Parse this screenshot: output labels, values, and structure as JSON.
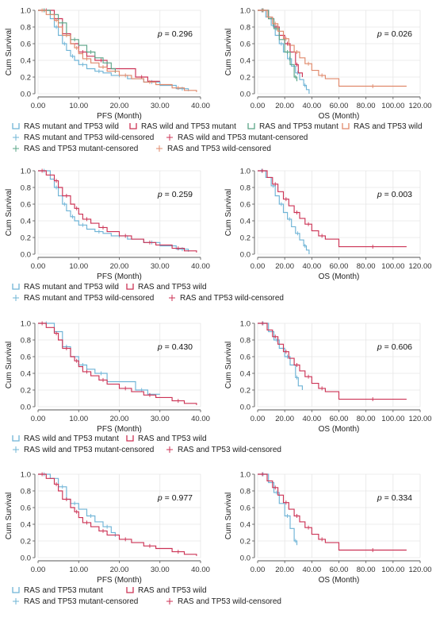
{
  "colors": {
    "rm_tw": "#6fb4d6",
    "rw_tm": "#cc3355",
    "r_tm": "#5aa487",
    "r_tw": "#e0886a",
    "axis": "#555555",
    "grid": "#e6e6e6"
  },
  "legends": [
    [
      {
        "kind": "step",
        "color": "rm_tw",
        "label": "RAS mutant and TP53 wild"
      },
      {
        "kind": "step",
        "color": "rw_tm",
        "label": "RAS wild and TP53 mutant"
      },
      {
        "kind": "step",
        "color": "r_tm",
        "label": "RAS and TP53 mutant"
      },
      {
        "kind": "step",
        "color": "r_tw",
        "label": "RAS and TP53 wild"
      },
      {
        "kind": "plus",
        "color": "rm_tw",
        "label": "RAS mutant and TP53 wild-censored"
      },
      {
        "kind": "plus",
        "color": "rw_tm",
        "label": "RAS wild and TP53 mutant-censored"
      },
      {
        "kind": "plus",
        "color": "r_tm",
        "label": "RAS and TP53 mutant-censored"
      },
      {
        "kind": "plus",
        "color": "r_tw",
        "label": "RAS and TP53 wild-censored"
      }
    ],
    [
      {
        "kind": "step",
        "color": "rm_tw",
        "label": "RAS mutant and TP53 wild"
      },
      {
        "kind": "step",
        "color": "rw_tm",
        "label": "RAS and TP53 wild"
      },
      {
        "kind": "plus",
        "color": "rm_tw",
        "label": "RAS mutant and TP53 wild-censored"
      },
      {
        "kind": "plus",
        "color": "rw_tm",
        "label": "RAS and TP53 wild-censored"
      }
    ],
    [
      {
        "kind": "step",
        "color": "rm_tw",
        "label": "RAS wild and TP53 mutant"
      },
      {
        "kind": "step",
        "color": "rw_tm",
        "label": "RAS and TP53 wild"
      },
      {
        "kind": "plus",
        "color": "rm_tw",
        "label": "RAS wild and TP53 mutant-censored"
      },
      {
        "kind": "plus",
        "color": "rw_tm",
        "label": "RAS and TP53 wild-censored"
      }
    ],
    [
      {
        "kind": "step",
        "color": "rm_tw",
        "label": "RAS and TP53 mutant"
      },
      {
        "kind": "step",
        "color": "rw_tm",
        "label": "RAS and TP53 wild"
      },
      {
        "kind": "plus",
        "color": "rm_tw",
        "label": "RAS and TP53 mutant-censored"
      },
      {
        "kind": "plus",
        "color": "rw_tm",
        "label": "RAS and TP53 wild-censored"
      }
    ]
  ],
  "chart_data": [
    {
      "type": "line",
      "row": 0,
      "col": 0,
      "step": true,
      "ylabel": "Cum Survival",
      "xlabel": "PFS (Month)",
      "p_label": "p",
      "p_text": "= 0.296",
      "xlim": [
        0,
        40
      ],
      "ylim": [
        0,
        1
      ],
      "xticks": [
        "0.00",
        "10.00",
        "20.00",
        "30.00",
        "40.00"
      ],
      "xtick_values": [
        0,
        10,
        20,
        30,
        40
      ],
      "yticks": [
        "0.0",
        "0.2",
        "0.4",
        "0.6",
        "0.8",
        "1.0"
      ],
      "ytick_values": [
        0,
        0.2,
        0.4,
        0.6,
        0.8,
        1.0
      ],
      "series": [
        {
          "color": "rm_tw",
          "x": [
            0,
            3,
            4,
            5,
            6,
            7,
            8,
            9,
            10,
            12,
            14,
            16,
            18,
            22,
            26,
            30,
            34,
            37
          ],
          "y": [
            1,
            0.9,
            0.8,
            0.7,
            0.6,
            0.52,
            0.45,
            0.4,
            0.35,
            0.3,
            0.27,
            0.25,
            0.22,
            0.18,
            0.14,
            0.1,
            0.06,
            0.03
          ]
        },
        {
          "color": "rw_tm",
          "x": [
            0,
            4,
            6,
            8,
            10,
            12,
            14,
            17,
            24,
            27,
            30
          ],
          "y": [
            1,
            0.9,
            0.72,
            0.6,
            0.5,
            0.45,
            0.4,
            0.3,
            0.2,
            0.15,
            0.15
          ]
        },
        {
          "color": "r_tm",
          "x": [
            0,
            3,
            5,
            7,
            8,
            10,
            12,
            14,
            16,
            18,
            19
          ],
          "y": [
            1,
            0.95,
            0.85,
            0.7,
            0.65,
            0.58,
            0.5,
            0.43,
            0.37,
            0.3,
            0.25
          ]
        },
        {
          "color": "r_tw",
          "x": [
            0,
            2,
            4,
            5,
            6,
            8,
            9,
            10,
            11,
            13,
            15,
            17,
            20,
            23,
            26,
            29,
            33,
            36,
            39
          ],
          "y": [
            1,
            0.95,
            0.88,
            0.8,
            0.7,
            0.6,
            0.55,
            0.48,
            0.42,
            0.37,
            0.32,
            0.27,
            0.22,
            0.18,
            0.14,
            0.11,
            0.07,
            0.04,
            0.02
          ]
        }
      ]
    },
    {
      "type": "line",
      "row": 0,
      "col": 1,
      "step": true,
      "ylabel": "Cum Survival",
      "xlabel": "OS (Month)",
      "p_label": "p",
      "p_text": "= 0.026",
      "xlim": [
        0,
        120
      ],
      "ylim": [
        0,
        1
      ],
      "xticks": [
        "0.00",
        "20.00",
        "40.00",
        "60.00",
        "80.00",
        "100.00",
        "120.00"
      ],
      "xtick_values": [
        0,
        20,
        40,
        60,
        80,
        100,
        120
      ],
      "yticks": [
        "0.0",
        "0.2",
        "0.4",
        "0.6",
        "0.8",
        "1.0"
      ],
      "ytick_values": [
        0,
        0.2,
        0.4,
        0.6,
        0.8,
        1.0
      ],
      "series": [
        {
          "color": "rm_tw",
          "x": [
            0,
            6,
            10,
            13,
            16,
            19,
            22,
            25,
            28,
            31,
            34,
            36,
            38
          ],
          "y": [
            1,
            0.92,
            0.82,
            0.7,
            0.6,
            0.5,
            0.42,
            0.33,
            0.25,
            0.17,
            0.1,
            0.05,
            0
          ]
        },
        {
          "color": "rw_tm",
          "x": [
            0,
            8,
            12,
            16,
            20,
            24,
            28,
            30,
            33
          ],
          "y": [
            1,
            0.9,
            0.8,
            0.7,
            0.6,
            0.5,
            0.35,
            0.25,
            0.2
          ]
        },
        {
          "color": "r_tm",
          "x": [
            0,
            8,
            12,
            16,
            20,
            24,
            27,
            29
          ],
          "y": [
            1,
            0.9,
            0.78,
            0.65,
            0.5,
            0.35,
            0.2,
            0.15
          ]
        },
        {
          "color": "r_tw",
          "x": [
            0,
            7,
            11,
            15,
            19,
            23,
            27,
            31,
            35,
            40,
            45,
            50,
            60,
            110
          ],
          "y": [
            1,
            0.92,
            0.84,
            0.75,
            0.66,
            0.58,
            0.5,
            0.43,
            0.36,
            0.28,
            0.22,
            0.18,
            0.09,
            0.09
          ]
        }
      ]
    },
    {
      "type": "line",
      "row": 1,
      "col": 0,
      "step": true,
      "ylabel": "Cum Survival",
      "xlabel": "PFS (Month)",
      "p_label": "p",
      "p_text": "= 0.259",
      "xlim": [
        0,
        40
      ],
      "ylim": [
        0,
        1
      ],
      "xticks": [
        "0.00",
        "10.00",
        "20.00",
        "30.00",
        "40.00"
      ],
      "xtick_values": [
        0,
        10,
        20,
        30,
        40
      ],
      "yticks": [
        "0.0",
        "0.2",
        "0.4",
        "0.6",
        "0.8",
        "1.0"
      ],
      "ytick_values": [
        0,
        0.2,
        0.4,
        0.6,
        0.8,
        1.0
      ],
      "series": [
        {
          "color": "rm_tw",
          "x": [
            0,
            3,
            4,
            5,
            6,
            7,
            8,
            9,
            10,
            12,
            14,
            16,
            18,
            22,
            26,
            30,
            34,
            37
          ],
          "y": [
            1,
            0.9,
            0.8,
            0.7,
            0.6,
            0.52,
            0.45,
            0.4,
            0.35,
            0.3,
            0.27,
            0.25,
            0.22,
            0.18,
            0.14,
            0.1,
            0.06,
            0.03
          ]
        },
        {
          "color": "rw_tm",
          "x": [
            0,
            2,
            4,
            5,
            6,
            8,
            9,
            10,
            11,
            13,
            15,
            17,
            20,
            23,
            26,
            29,
            33,
            36,
            39
          ],
          "y": [
            1,
            0.95,
            0.88,
            0.8,
            0.7,
            0.6,
            0.55,
            0.48,
            0.42,
            0.37,
            0.32,
            0.27,
            0.22,
            0.18,
            0.14,
            0.11,
            0.07,
            0.04,
            0.02
          ]
        }
      ]
    },
    {
      "type": "line",
      "row": 1,
      "col": 1,
      "step": true,
      "ylabel": "Cum Survival",
      "xlabel": "OS (Month)",
      "p_label": "p",
      "p_text": "= 0.003",
      "xlim": [
        0,
        120
      ],
      "ylim": [
        0,
        1
      ],
      "xticks": [
        "0.00",
        "20.00",
        "40.00",
        "60.00",
        "80.00",
        "100.00",
        "120.00"
      ],
      "xtick_values": [
        0,
        20,
        40,
        60,
        80,
        100,
        120
      ],
      "yticks": [
        "0.0",
        "0.2",
        "0.4",
        "0.6",
        "0.8",
        "1.0"
      ],
      "ytick_values": [
        0,
        0.2,
        0.4,
        0.6,
        0.8,
        1.0
      ],
      "series": [
        {
          "color": "rm_tw",
          "x": [
            0,
            6,
            10,
            13,
            16,
            19,
            22,
            25,
            28,
            31,
            34,
            36,
            38
          ],
          "y": [
            1,
            0.92,
            0.82,
            0.7,
            0.6,
            0.5,
            0.42,
            0.33,
            0.25,
            0.17,
            0.1,
            0.05,
            0
          ]
        },
        {
          "color": "rw_tm",
          "x": [
            0,
            7,
            11,
            15,
            19,
            23,
            27,
            31,
            35,
            40,
            45,
            50,
            60,
            110
          ],
          "y": [
            1,
            0.92,
            0.84,
            0.75,
            0.66,
            0.58,
            0.5,
            0.43,
            0.36,
            0.28,
            0.22,
            0.18,
            0.09,
            0.09
          ]
        }
      ]
    },
    {
      "type": "line",
      "row": 2,
      "col": 0,
      "step": true,
      "ylabel": "Cum Survival",
      "xlabel": "PFS (Month)",
      "p_label": "p",
      "p_text": "= 0.430",
      "xlim": [
        0,
        40
      ],
      "ylim": [
        0,
        1
      ],
      "xticks": [
        "0.00",
        "10.00",
        "20.00",
        "30.00",
        "40.00"
      ],
      "xtick_values": [
        0,
        10,
        20,
        30,
        40
      ],
      "yticks": [
        "0.0",
        "0.2",
        "0.4",
        "0.6",
        "0.8",
        "1.0"
      ],
      "ytick_values": [
        0,
        0.2,
        0.4,
        0.6,
        0.8,
        1.0
      ],
      "series": [
        {
          "color": "rm_tw",
          "x": [
            0,
            4,
            6,
            8,
            10,
            12,
            14,
            17,
            24,
            27,
            30
          ],
          "y": [
            1,
            0.9,
            0.72,
            0.6,
            0.5,
            0.45,
            0.4,
            0.3,
            0.2,
            0.15,
            0.15
          ]
        },
        {
          "color": "rw_tm",
          "x": [
            0,
            2,
            4,
            5,
            6,
            8,
            9,
            10,
            11,
            13,
            15,
            17,
            20,
            23,
            26,
            29,
            33,
            36,
            39
          ],
          "y": [
            1,
            0.95,
            0.88,
            0.8,
            0.7,
            0.6,
            0.55,
            0.48,
            0.42,
            0.37,
            0.32,
            0.27,
            0.22,
            0.18,
            0.14,
            0.11,
            0.07,
            0.04,
            0.02
          ]
        }
      ]
    },
    {
      "type": "line",
      "row": 2,
      "col": 1,
      "step": true,
      "ylabel": "Cum Survival",
      "xlabel": "OS (Month)",
      "p_label": "p",
      "p_text": "= 0.606",
      "xlim": [
        0,
        120
      ],
      "ylim": [
        0,
        1
      ],
      "xticks": [
        "0.00",
        "20.00",
        "40.00",
        "60.00",
        "80.00",
        "100.00",
        "120.00"
      ],
      "xtick_values": [
        0,
        20,
        40,
        60,
        80,
        100,
        120
      ],
      "yticks": [
        "0.0",
        "0.2",
        "0.4",
        "0.6",
        "0.8",
        "1.0"
      ],
      "ytick_values": [
        0,
        0.2,
        0.4,
        0.6,
        0.8,
        1.0
      ],
      "series": [
        {
          "color": "rm_tw",
          "x": [
            0,
            8,
            12,
            16,
            20,
            24,
            28,
            30,
            33
          ],
          "y": [
            1,
            0.9,
            0.8,
            0.7,
            0.6,
            0.5,
            0.35,
            0.25,
            0.2
          ]
        },
        {
          "color": "rw_tm",
          "x": [
            0,
            7,
            11,
            15,
            19,
            23,
            27,
            31,
            35,
            40,
            45,
            50,
            60,
            110
          ],
          "y": [
            1,
            0.92,
            0.84,
            0.75,
            0.66,
            0.58,
            0.5,
            0.43,
            0.36,
            0.28,
            0.22,
            0.18,
            0.09,
            0.09
          ]
        }
      ]
    },
    {
      "type": "line",
      "row": 3,
      "col": 0,
      "step": true,
      "ylabel": "Cum Survival",
      "xlabel": "PFS (Month)",
      "p_label": "p",
      "p_text": "= 0.977",
      "xlim": [
        0,
        40
      ],
      "ylim": [
        0,
        1
      ],
      "xticks": [
        "0.00",
        "10.00",
        "20.00",
        "30.00",
        "40.00"
      ],
      "xtick_values": [
        0,
        10,
        20,
        30,
        40
      ],
      "yticks": [
        "0.0",
        "0.2",
        "0.4",
        "0.6",
        "0.8",
        "1.0"
      ],
      "ytick_values": [
        0,
        0.2,
        0.4,
        0.6,
        0.8,
        1.0
      ],
      "series": [
        {
          "color": "rm_tw",
          "x": [
            0,
            3,
            5,
            7,
            8,
            10,
            12,
            14,
            16,
            18,
            19
          ],
          "y": [
            1,
            0.95,
            0.85,
            0.7,
            0.65,
            0.58,
            0.5,
            0.43,
            0.37,
            0.3,
            0.25
          ]
        },
        {
          "color": "rw_tm",
          "x": [
            0,
            2,
            4,
            5,
            6,
            8,
            9,
            10,
            11,
            13,
            15,
            17,
            20,
            23,
            26,
            29,
            33,
            36,
            39
          ],
          "y": [
            1,
            0.95,
            0.88,
            0.8,
            0.7,
            0.6,
            0.55,
            0.48,
            0.42,
            0.37,
            0.32,
            0.27,
            0.22,
            0.18,
            0.14,
            0.11,
            0.07,
            0.04,
            0.02
          ]
        }
      ]
    },
    {
      "type": "line",
      "row": 3,
      "col": 1,
      "step": true,
      "ylabel": "Cum Survival",
      "xlabel": "OS (Month)",
      "p_label": "p",
      "p_text": "= 0.334",
      "xlim": [
        0,
        120
      ],
      "ylim": [
        0,
        1
      ],
      "xticks": [
        "0.00",
        "20.00",
        "40.00",
        "60.00",
        "80.00",
        "100.00",
        "120.00"
      ],
      "xtick_values": [
        0,
        20,
        40,
        60,
        80,
        100,
        120
      ],
      "yticks": [
        "0.0",
        "0.2",
        "0.4",
        "0.6",
        "0.8",
        "1.0"
      ],
      "ytick_values": [
        0,
        0.2,
        0.4,
        0.6,
        0.8,
        1.0
      ],
      "series": [
        {
          "color": "rm_tw",
          "x": [
            0,
            8,
            12,
            16,
            20,
            24,
            27,
            29
          ],
          "y": [
            1,
            0.9,
            0.78,
            0.65,
            0.5,
            0.35,
            0.2,
            0.15
          ]
        },
        {
          "color": "rw_tm",
          "x": [
            0,
            7,
            11,
            15,
            19,
            23,
            27,
            31,
            35,
            40,
            45,
            50,
            60,
            110
          ],
          "y": [
            1,
            0.92,
            0.84,
            0.75,
            0.66,
            0.58,
            0.5,
            0.43,
            0.36,
            0.28,
            0.22,
            0.18,
            0.09,
            0.09
          ]
        }
      ]
    }
  ]
}
